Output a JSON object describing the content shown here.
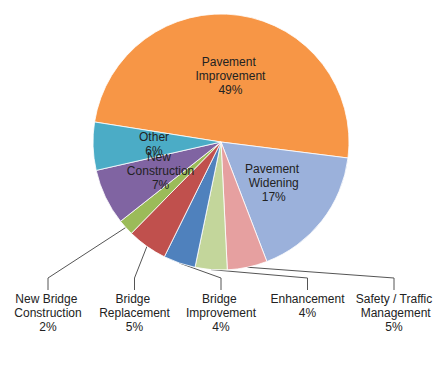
{
  "chart_data": {
    "type": "pie",
    "categories": [
      "Pavement Improvement",
      "Pavement Widening",
      "Safety / Traffic Management",
      "Enhancement",
      "Bridge Improvement",
      "Bridge Replacement",
      "New Bridge Construction",
      "New Construction",
      "Other"
    ],
    "values": [
      49,
      17,
      5,
      4,
      4,
      5,
      2,
      7,
      6
    ],
    "value_labels": [
      "49%",
      "17%",
      "5%",
      "4%",
      "4%",
      "5%",
      "2%",
      "7%",
      "6%"
    ],
    "colors": [
      "#F79646",
      "#9BB1DB",
      "#E6A0A0",
      "#C3D69B",
      "#4F81BD",
      "#C0504D",
      "#9BBB59",
      "#8064A2",
      "#4BACC6"
    ],
    "data_labels": true
  }
}
